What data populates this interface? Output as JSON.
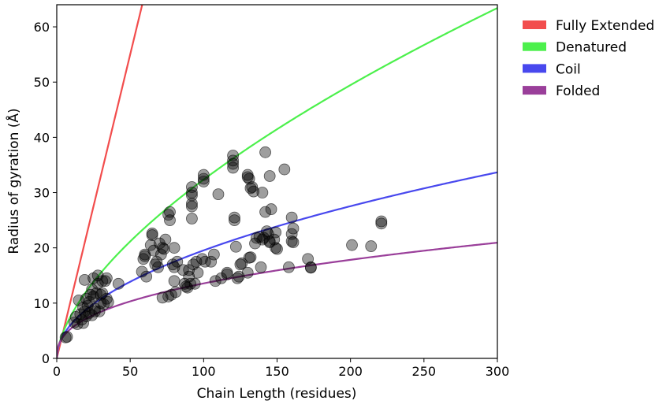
{
  "chart_data": {
    "type": "scatter",
    "title": "",
    "xlabel": "Chain Length (residues)",
    "ylabel": "Radius of gyration (Å)",
    "xlim": [
      0,
      300
    ],
    "ylim": [
      0,
      64
    ],
    "xticks": [
      0,
      50,
      100,
      150,
      200,
      250,
      300
    ],
    "yticks": [
      0,
      10,
      20,
      30,
      40,
      50,
      60
    ],
    "grid": false,
    "legend_position": "right",
    "curves": [
      {
        "name": "Fully Extended",
        "color": "#f24d4d",
        "coef": 1.1,
        "exp": 1.0
      },
      {
        "name": "Denatured",
        "color": "#4cf04c",
        "coef": 1.927,
        "exp": 0.6125
      },
      {
        "name": "Coil",
        "color": "#4848ee",
        "coef": 2.0,
        "exp": 0.495
      },
      {
        "name": "Folded",
        "color": "#9a3f9a",
        "coef": 2.2,
        "exp": 0.395
      }
    ],
    "scatter": {
      "color": "#000000",
      "opacity": 0.38,
      "points": [
        [
          6,
          3.8
        ],
        [
          7,
          3.9
        ],
        [
          12,
          6.5
        ],
        [
          13,
          7.5
        ],
        [
          14,
          6.2
        ],
        [
          15,
          10.5
        ],
        [
          16,
          8
        ],
        [
          17,
          7
        ],
        [
          18,
          6.4
        ],
        [
          18,
          9.2
        ],
        [
          19,
          8.5
        ],
        [
          19,
          14.2
        ],
        [
          20,
          7.6
        ],
        [
          20,
          10.8
        ],
        [
          21,
          9.5
        ],
        [
          22,
          8.2
        ],
        [
          22,
          10.2
        ],
        [
          23,
          11.5
        ],
        [
          24,
          12.5
        ],
        [
          24,
          7.8
        ],
        [
          25,
          11.2
        ],
        [
          25,
          14.5
        ],
        [
          26,
          8.5
        ],
        [
          26,
          9
        ],
        [
          27,
          11.8
        ],
        [
          28,
          15
        ],
        [
          28,
          13.5
        ],
        [
          29,
          8.5
        ],
        [
          30,
          10
        ],
        [
          30,
          11.5
        ],
        [
          31,
          11.8
        ],
        [
          31,
          14
        ],
        [
          32,
          9.8
        ],
        [
          33,
          14
        ],
        [
          34,
          10.8
        ],
        [
          34,
          14.5
        ],
        [
          35,
          10.2
        ],
        [
          42,
          13.5
        ],
        [
          58,
          15.7
        ],
        [
          59,
          18
        ],
        [
          60,
          18.5
        ],
        [
          60,
          18.8
        ],
        [
          61,
          14.8
        ],
        [
          64,
          20.5
        ],
        [
          65,
          22.3
        ],
        [
          65,
          22.6
        ],
        [
          66,
          19.5
        ],
        [
          67,
          17
        ],
        [
          68,
          17.5
        ],
        [
          69,
          16.5
        ],
        [
          70,
          20.8
        ],
        [
          71,
          18.8
        ],
        [
          72,
          20
        ],
        [
          72,
          11
        ],
        [
          73,
          19.8
        ],
        [
          74,
          21.5
        ],
        [
          76,
          11.2
        ],
        [
          76,
          26
        ],
        [
          77,
          26.5
        ],
        [
          77,
          25
        ],
        [
          78,
          11.5
        ],
        [
          79,
          17
        ],
        [
          80,
          14
        ],
        [
          80,
          16.5
        ],
        [
          80,
          20
        ],
        [
          81,
          12
        ],
        [
          82,
          17.5
        ],
        [
          86,
          16
        ],
        [
          87,
          13.5
        ],
        [
          88,
          13
        ],
        [
          89,
          12.8
        ],
        [
          90,
          14.8
        ],
        [
          90,
          16
        ],
        [
          91,
          13.5
        ],
        [
          92,
          31
        ],
        [
          92,
          30
        ],
        [
          92,
          29.5
        ],
        [
          92,
          28
        ],
        [
          92,
          27.5
        ],
        [
          92,
          25.3
        ],
        [
          93,
          17
        ],
        [
          94,
          13.5
        ],
        [
          95,
          17.5
        ],
        [
          96,
          15.5
        ],
        [
          99,
          18
        ],
        [
          100,
          33.2
        ],
        [
          100,
          32.5
        ],
        [
          100,
          32
        ],
        [
          101,
          17.5
        ],
        [
          105,
          17.5
        ],
        [
          107,
          18.8
        ],
        [
          108,
          14
        ],
        [
          110,
          29.7
        ],
        [
          112,
          14.5
        ],
        [
          116,
          15.2
        ],
        [
          116,
          15.5
        ],
        [
          120,
          36.7
        ],
        [
          120,
          35.8
        ],
        [
          120,
          35.2
        ],
        [
          120,
          34.5
        ],
        [
          121,
          25.5
        ],
        [
          121,
          25
        ],
        [
          122,
          20.2
        ],
        [
          123,
          14.5
        ],
        [
          124,
          14.8
        ],
        [
          125,
          17
        ],
        [
          126,
          17.2
        ],
        [
          130,
          33.2
        ],
        [
          130,
          32.8
        ],
        [
          130,
          15.5
        ],
        [
          131,
          32.5
        ],
        [
          131,
          18.2
        ],
        [
          132,
          18.3
        ],
        [
          132,
          30.8
        ],
        [
          133,
          31
        ],
        [
          134,
          30.2
        ],
        [
          135,
          20.8
        ],
        [
          136,
          21.8
        ],
        [
          138,
          22
        ],
        [
          139,
          16.5
        ],
        [
          140,
          21.5
        ],
        [
          140,
          30
        ],
        [
          141,
          21.8
        ],
        [
          142,
          37.3
        ],
        [
          142,
          26.5
        ],
        [
          143,
          23
        ],
        [
          144,
          22.5
        ],
        [
          145,
          33
        ],
        [
          145,
          21.2
        ],
        [
          145,
          21
        ],
        [
          146,
          27
        ],
        [
          148,
          21.5
        ],
        [
          149,
          22.8
        ],
        [
          149,
          20
        ],
        [
          150,
          19.8
        ],
        [
          155,
          34.2
        ],
        [
          158,
          16.5
        ],
        [
          160,
          25.5
        ],
        [
          160,
          22.5
        ],
        [
          160,
          21.2
        ],
        [
          161,
          21
        ],
        [
          161,
          23.5
        ],
        [
          171,
          18
        ],
        [
          173,
          16.5
        ],
        [
          173,
          16.4
        ],
        [
          201,
          20.5
        ],
        [
          214,
          20.3
        ],
        [
          221,
          24.8
        ],
        [
          221,
          24.4
        ]
      ]
    }
  }
}
